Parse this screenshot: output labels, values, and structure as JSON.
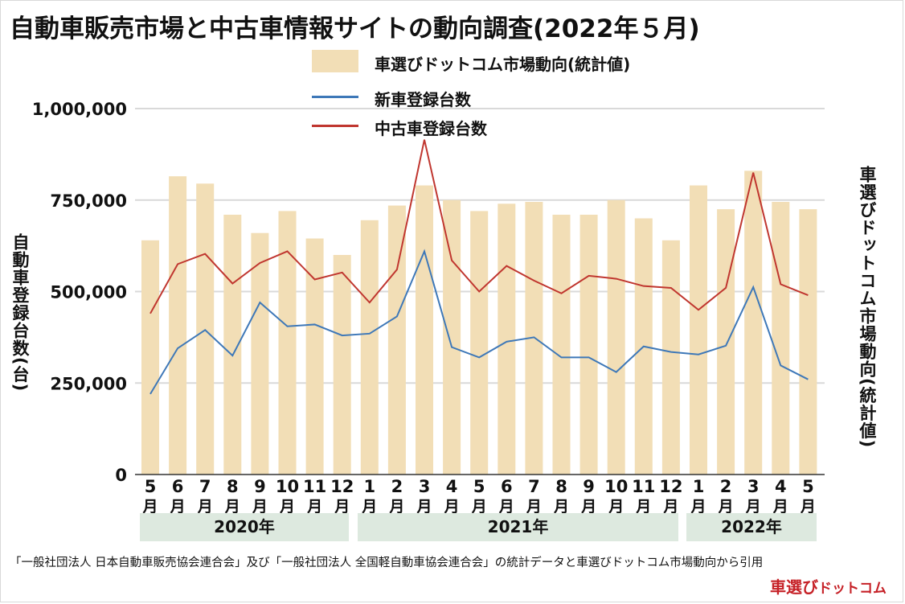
{
  "title": "自動車販売市場と中古車情報サイトの動向調査(2022年５月)",
  "legend": {
    "bar_label": "車選びドットコム市場動向(統計値)",
    "new_label": "新車登録台数",
    "used_label": "中古車登録台数"
  },
  "y_axis_left_label": "自動車登録台数(台)",
  "y_axis_right_label": "車選びドットコム市場動向(統計値)",
  "years": [
    "2020年",
    "2021年",
    "2022年"
  ],
  "source_text": "「一般社団法人 日本自動車販売協会連合会」及び「一般社団法人 全国軽自動車協会連合会」の統計データと車選びドットコム市場動向から引用",
  "logo": {
    "main": "車選び",
    "sub": "ドットコム"
  },
  "colors": {
    "bar": "#f2deb6",
    "new_line": "#3e78b8",
    "used_line": "#c0362f",
    "grid": "#d9d9d9",
    "year_band": "#dde9df"
  },
  "chart_data": {
    "type": "bar+line",
    "categories": [
      "5月",
      "6月",
      "7月",
      "8月",
      "9月",
      "10月",
      "11月",
      "12月",
      "1月",
      "2月",
      "3月",
      "4月",
      "5月",
      "6月",
      "7月",
      "8月",
      "9月",
      "10月",
      "11月",
      "12月",
      "1月",
      "2月",
      "3月",
      "4月",
      "5月"
    ],
    "y_ticks": [
      "1,000,000",
      "750,000",
      "500,000",
      "250,000",
      "0"
    ],
    "ylim": [
      0,
      1000000
    ],
    "bar_series": {
      "name": "車選びドットコム市場動向(統計値)",
      "values": [
        640000,
        815000,
        795000,
        710000,
        660000,
        720000,
        645000,
        600000,
        695000,
        735000,
        790000,
        750000,
        720000,
        740000,
        745000,
        710000,
        710000,
        750000,
        700000,
        640000,
        790000,
        725000,
        830000,
        745000,
        725000
      ]
    },
    "series": [
      {
        "name": "新車登録台数",
        "values": [
          220000,
          345000,
          395000,
          325000,
          470000,
          405000,
          410000,
          380000,
          385000,
          432000,
          610000,
          348000,
          320000,
          363000,
          375000,
          320000,
          320000,
          280000,
          350000,
          335000,
          328000,
          352000,
          512000,
          298000,
          260000
        ]
      },
      {
        "name": "中古車登録台数",
        "values": [
          440000,
          575000,
          603000,
          522000,
          578000,
          610000,
          533000,
          552000,
          470000,
          560000,
          915000,
          585000,
          500000,
          570000,
          530000,
          495000,
          543000,
          535000,
          515000,
          510000,
          450000,
          510000,
          825000,
          520000,
          490000
        ]
      }
    ]
  }
}
